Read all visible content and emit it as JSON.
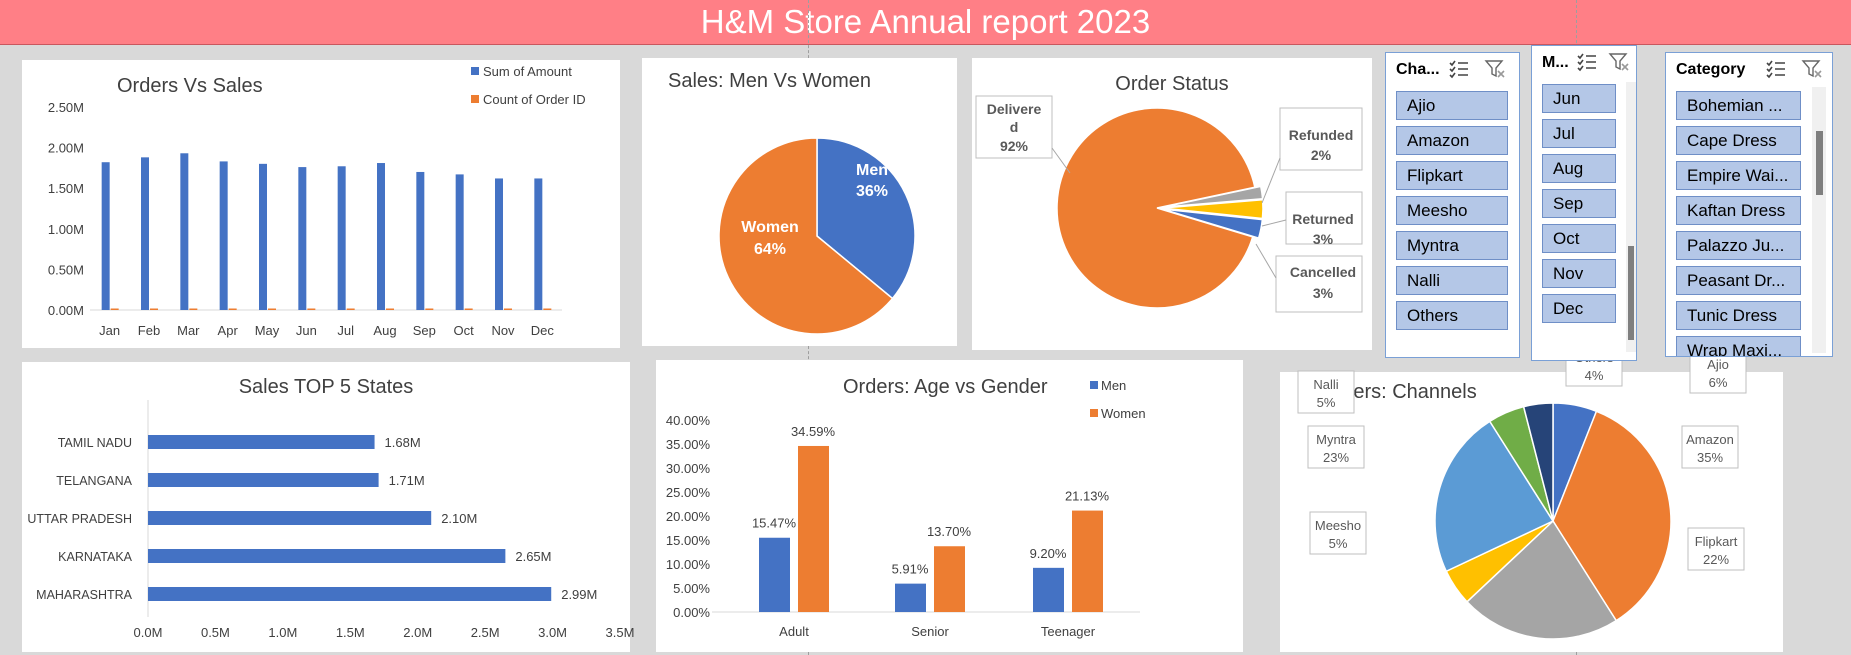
{
  "report_title": "H&M Store Annual report 2023",
  "colors": {
    "blue": "#4472c4",
    "orange": "#ed7d31",
    "gray": "#a5a5a5",
    "yellow": "#ffc000",
    "lightblue": "#5b9bd5",
    "green": "#70ad47",
    "navy": "#264478",
    "banner": "#ff7f86",
    "slicer_item": "#b4c7e7"
  },
  "slicers": {
    "channel": {
      "title": "Cha...",
      "items": [
        "Ajio",
        "Amazon",
        "Flipkart",
        "Meesho",
        "Myntra",
        "Nalli",
        "Others"
      ]
    },
    "month": {
      "title": "M...",
      "items": [
        "Jun",
        "Jul",
        "Aug",
        "Sep",
        "Oct",
        "Nov",
        "Dec"
      ]
    },
    "category": {
      "title": "Category",
      "items": [
        "Bohemian ...",
        "Cape Dress",
        "Empire Wai...",
        "Kaftan Dress",
        "Palazzo Ju...",
        "Peasant Dr...",
        "Tunic Dress",
        "Wrap Maxi..."
      ]
    }
  },
  "chart_data": [
    {
      "id": "orders_vs_sales",
      "type": "bar",
      "title": "Orders Vs Sales",
      "categories": [
        "Jan",
        "Feb",
        "Mar",
        "Apr",
        "May",
        "Jun",
        "Jul",
        "Aug",
        "Sep",
        "Oct",
        "Nov",
        "Dec"
      ],
      "series": [
        {
          "name": "Sum of Amount",
          "values": [
            1.82,
            1.88,
            1.93,
            1.83,
            1.8,
            1.76,
            1.77,
            1.81,
            1.7,
            1.67,
            1.62,
            1.62
          ]
        },
        {
          "name": "Count of Order ID",
          "values": [
            0.01,
            0.01,
            0.01,
            0.01,
            0.01,
            0.01,
            0.01,
            0.01,
            0.01,
            0.01,
            0.01,
            0.01
          ]
        }
      ],
      "yticks": [
        "0.00M",
        "0.50M",
        "1.00M",
        "1.50M",
        "2.00M",
        "2.50M"
      ],
      "ylim": [
        0,
        2.5
      ],
      "legend": "top-right"
    },
    {
      "id": "sales_men_women",
      "type": "pie",
      "title": "Sales: Men Vs Women",
      "slices": [
        {
          "name": "Men",
          "value": 36,
          "label": "36%"
        },
        {
          "name": "Women",
          "value": 64,
          "label": "64%"
        }
      ]
    },
    {
      "id": "order_status",
      "type": "pie",
      "title": "Order Status",
      "slices": [
        {
          "name": "Delivered",
          "display": "Delivere d",
          "value": 92,
          "label": "92%"
        },
        {
          "name": "Refunded",
          "value": 2,
          "label": "2%"
        },
        {
          "name": "Returned",
          "value": 3,
          "label": "3%"
        },
        {
          "name": "Cancelled",
          "value": 3,
          "label": "3%"
        }
      ]
    },
    {
      "id": "top5_states",
      "type": "bar",
      "orientation": "horizontal",
      "title": "Sales TOP 5 States",
      "categories": [
        "TAMIL NADU",
        "TELANGANA",
        "UTTAR PRADESH",
        "KARNATAKA",
        "MAHARASHTRA"
      ],
      "values": [
        1.68,
        1.71,
        2.1,
        2.65,
        2.99
      ],
      "labels": [
        "1.68M",
        "1.71M",
        "2.10M",
        "2.65M",
        "2.99M"
      ],
      "xticks": [
        "0.0M",
        "0.5M",
        "1.0M",
        "1.5M",
        "2.0M",
        "2.5M",
        "3.0M",
        "3.5M"
      ],
      "xlim": [
        0,
        3.5
      ]
    },
    {
      "id": "age_gender",
      "type": "bar",
      "title": "Orders: Age vs Gender",
      "categories": [
        "Adult",
        "Senior",
        "Teenager"
      ],
      "series": [
        {
          "name": "Men",
          "values": [
            15.47,
            5.91,
            9.2
          ],
          "labels": [
            "15.47%",
            "5.91%",
            "9.20%"
          ]
        },
        {
          "name": "Women",
          "values": [
            34.59,
            13.7,
            21.13
          ],
          "labels": [
            "34.59%",
            "13.70%",
            "21.13%"
          ]
        }
      ],
      "yticks": [
        "0.00%",
        "5.00%",
        "10.00%",
        "15.00%",
        "20.00%",
        "25.00%",
        "30.00%",
        "35.00%",
        "40.00%"
      ],
      "ylim": [
        0,
        40
      ],
      "legend": "top-right"
    },
    {
      "id": "channels",
      "type": "pie",
      "title": "Orders: Channels",
      "slices": [
        {
          "name": "Ajio",
          "value": 6,
          "label": "6%"
        },
        {
          "name": "Amazon",
          "value": 35,
          "label": "35%"
        },
        {
          "name": "Flipkart",
          "value": 22,
          "label": "22%"
        },
        {
          "name": "Meesho",
          "value": 5,
          "label": "5%"
        },
        {
          "name": "Myntra",
          "value": 23,
          "label": "23%"
        },
        {
          "name": "Nalli",
          "value": 5,
          "label": "5%"
        },
        {
          "name": "Others",
          "value": 4,
          "label": "4%"
        }
      ]
    }
  ]
}
